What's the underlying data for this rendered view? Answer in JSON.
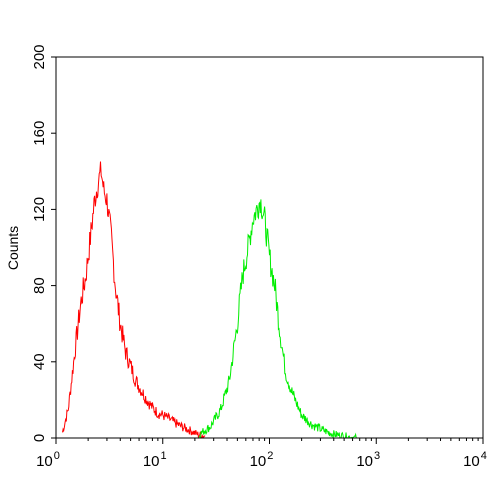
{
  "chart_data": {
    "type": "area",
    "title": "",
    "xlabel": "",
    "ylabel": "Counts",
    "x_scale": "log",
    "xlim": [
      1,
      10000
    ],
    "ylim": [
      0,
      200
    ],
    "grid": false,
    "legend": "none",
    "x_ticks": [
      {
        "base": "10",
        "exp": "0",
        "value": 1
      },
      {
        "base": "10",
        "exp": "1",
        "value": 10
      },
      {
        "base": "10",
        "exp": "2",
        "value": 100
      },
      {
        "base": "10",
        "exp": "3",
        "value": 1000
      },
      {
        "base": "10",
        "exp": "4",
        "value": 10000
      }
    ],
    "y_ticks": [
      "0",
      "40",
      "80",
      "120",
      "160",
      "200"
    ],
    "series": [
      {
        "color": "#ff0000",
        "x": [
          1.15,
          1.3,
          1.5,
          1.7,
          1.9,
          2.1,
          2.3,
          2.5,
          2.65,
          2.8,
          3.0,
          3.3,
          3.6,
          4.0,
          4.5,
          5.0,
          5.6,
          6.3,
          7.1,
          8.0,
          9.0,
          10,
          11.5,
          13,
          15,
          18,
          21,
          25
        ],
        "y": [
          3,
          15,
          45,
          70,
          85,
          105,
          125,
          135,
          140,
          130,
          125,
          105,
          80,
          60,
          45,
          38,
          30,
          25,
          20,
          16,
          13,
          12,
          10,
          8,
          6,
          4,
          2,
          1
        ]
      },
      {
        "color": "#00ee00",
        "x": [
          22,
          28,
          35,
          42,
          50,
          56,
          63,
          70,
          76,
          82,
          90,
          100,
          112,
          126,
          141,
          160,
          180,
          200,
          250,
          320,
          400,
          500,
          650
        ],
        "y": [
          2,
          6,
          15,
          30,
          60,
          85,
          100,
          115,
          120,
          125,
          115,
          95,
          80,
          55,
          35,
          25,
          18,
          12,
          7,
          4,
          2,
          1,
          0
        ]
      }
    ]
  }
}
